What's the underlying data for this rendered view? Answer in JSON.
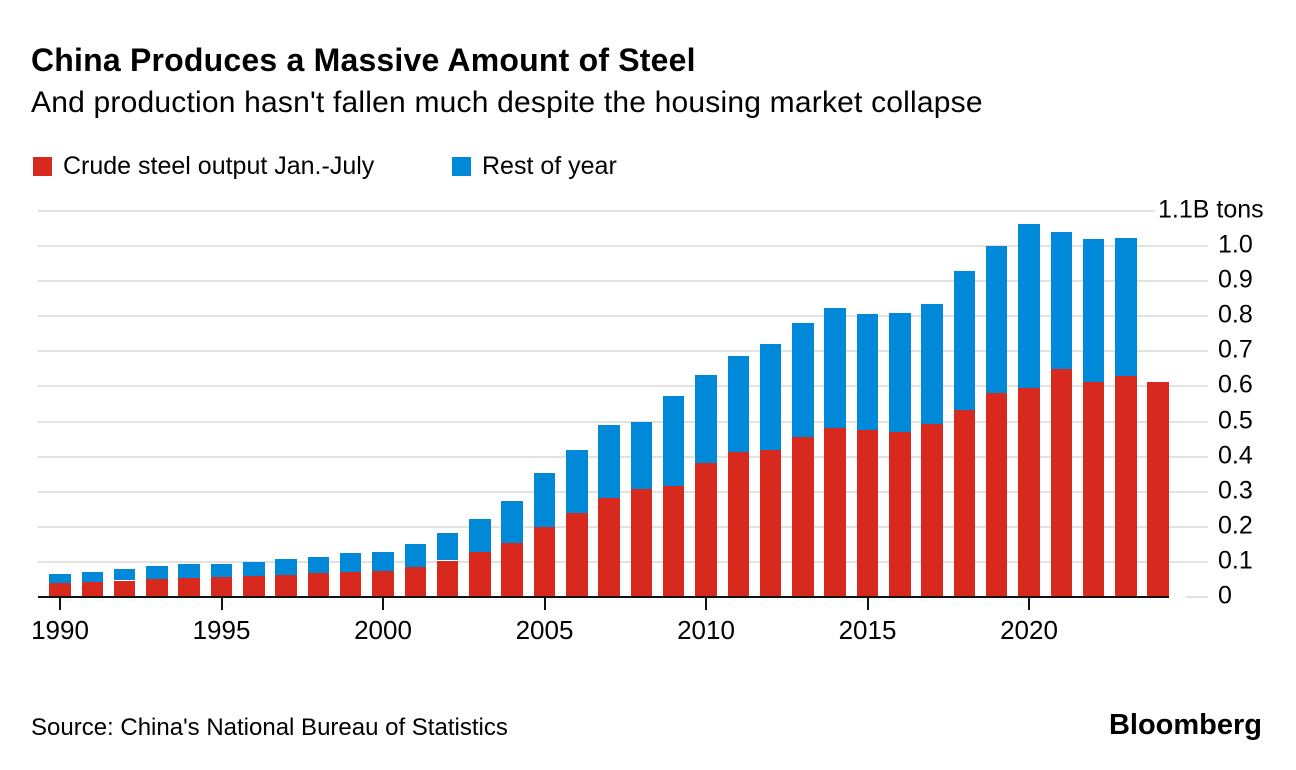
{
  "header": {
    "title": "China Produces a Massive Amount of Steel",
    "subtitle": "And production hasn't fallen much despite the housing market collapse"
  },
  "legend": {
    "items": [
      {
        "label": "Crude steel output Jan.-July",
        "color": "#d8291f"
      },
      {
        "label": "Rest of year",
        "color": "#0088d9"
      }
    ]
  },
  "footer": {
    "source": "Source: China's National Bureau of Statistics",
    "brand": "Bloomberg"
  },
  "colors": {
    "red": "#d8291f",
    "blue": "#0088d9",
    "gridline": "#e2e2e2",
    "axis": "#111111"
  },
  "chart_data": {
    "type": "bar",
    "stacked": true,
    "title": "China Produces a Massive Amount of Steel",
    "subtitle": "And production hasn't fallen much despite the housing market collapse",
    "xlabel": "",
    "ylabel": "",
    "y_axis_top_label": "1.1B tons",
    "ylim": [
      0,
      1.1
    ],
    "yticks": [
      0,
      0.1,
      0.2,
      0.3,
      0.4,
      0.5,
      0.6,
      0.7,
      0.8,
      0.9,
      1.0
    ],
    "ytick_labels": [
      "0",
      "0.1",
      "0.2",
      "0.3",
      "0.4",
      "0.5",
      "0.6",
      "0.7",
      "0.8",
      "0.9",
      "1.0"
    ],
    "xticks": [
      1990,
      1995,
      2000,
      2005,
      2010,
      2015,
      2020
    ],
    "grid": true,
    "legend_position": "top",
    "axis_labels_side": "right",
    "unit": "billion tons",
    "categories": [
      1990,
      1991,
      1992,
      1993,
      1994,
      1995,
      1996,
      1997,
      1998,
      1999,
      2000,
      2001,
      2002,
      2003,
      2004,
      2005,
      2006,
      2007,
      2008,
      2009,
      2010,
      2011,
      2012,
      2013,
      2014,
      2015,
      2016,
      2017,
      2018,
      2019,
      2020,
      2021,
      2022,
      2023,
      2024
    ],
    "series": [
      {
        "name": "Crude steel output Jan.-July",
        "color": "#d8291f",
        "values": [
          0.039,
          0.042,
          0.047,
          0.052,
          0.054,
          0.056,
          0.059,
          0.063,
          0.067,
          0.072,
          0.074,
          0.086,
          0.104,
          0.127,
          0.155,
          0.199,
          0.238,
          0.281,
          0.308,
          0.317,
          0.383,
          0.413,
          0.419,
          0.456,
          0.481,
          0.477,
          0.469,
          0.494,
          0.533,
          0.58,
          0.596,
          0.65,
          0.612,
          0.629,
          0.614
        ]
      },
      {
        "name": "Rest of year",
        "color": "#0088d9",
        "values": [
          0.027,
          0.029,
          0.034,
          0.037,
          0.039,
          0.039,
          0.042,
          0.046,
          0.047,
          0.052,
          0.055,
          0.065,
          0.078,
          0.095,
          0.118,
          0.154,
          0.181,
          0.208,
          0.192,
          0.255,
          0.249,
          0.273,
          0.301,
          0.324,
          0.342,
          0.329,
          0.341,
          0.342,
          0.397,
          0.419,
          0.467,
          0.39,
          0.409,
          0.395,
          0
        ]
      }
    ],
    "totals": [
      0.066,
      0.071,
      0.081,
      0.089,
      0.093,
      0.095,
      0.101,
      0.109,
      0.114,
      0.124,
      0.129,
      0.151,
      0.182,
      0.222,
      0.273,
      0.353,
      0.419,
      0.489,
      0.5,
      0.572,
      0.632,
      0.686,
      0.72,
      0.78,
      0.823,
      0.806,
      0.81,
      0.836,
      0.93,
      0.999,
      1.063,
      1.04,
      1.021,
      1.024,
      0.614
    ]
  }
}
